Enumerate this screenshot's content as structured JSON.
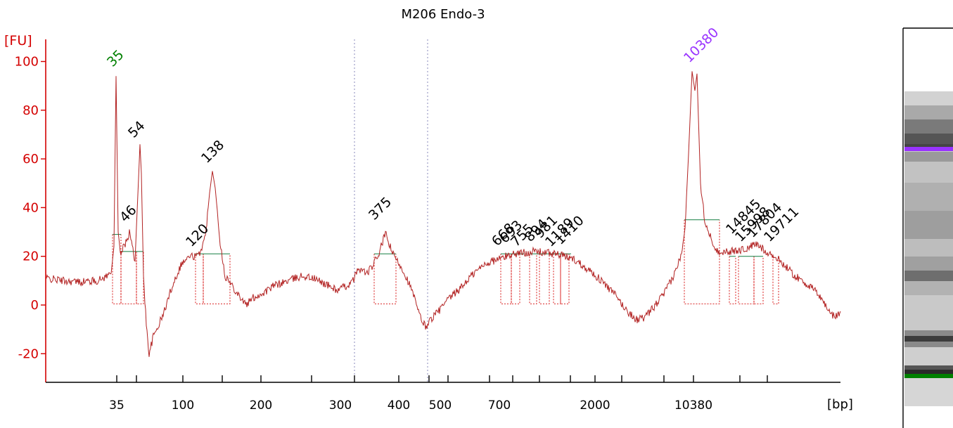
{
  "chart_data": {
    "type": "line",
    "title": "M206 Endo-3",
    "ylabel": "[FU]",
    "xlabel": "[bp]",
    "ylim": [
      -32,
      112
    ],
    "y_ticks": [
      -20,
      0,
      20,
      40,
      60,
      80,
      100
    ],
    "x_ticks": [
      "35",
      "100",
      "200",
      "300",
      "400",
      "500",
      "700",
      "2000",
      "10380"
    ],
    "marker_colors": {
      "lower": "#008000",
      "upper": "#9933ff"
    },
    "trace_color": "#b22222",
    "grid": false,
    "peaks": [
      {
        "label": "35",
        "color": "#008000",
        "fu": 94
      },
      {
        "label": "46",
        "color": "#000000",
        "fu": 30
      },
      {
        "label": "54",
        "color": "#000000",
        "fu": 66
      },
      {
        "label": "120",
        "color": "#000000",
        "fu": 22
      },
      {
        "label": "138",
        "color": "#000000",
        "fu": 55
      },
      {
        "label": "375",
        "color": "#000000",
        "fu": 29
      },
      {
        "label": "668",
        "color": "#000000",
        "fu": 22
      },
      {
        "label": "693",
        "color": "#000000",
        "fu": 23
      },
      {
        "label": "755",
        "color": "#000000",
        "fu": 22
      },
      {
        "label": "894",
        "color": "#000000",
        "fu": 23
      },
      {
        "label": "981",
        "color": "#000000",
        "fu": 23
      },
      {
        "label": "1189",
        "color": "#000000",
        "fu": 22
      },
      {
        "label": "1410",
        "color": "#000000",
        "fu": 22
      },
      {
        "label": "10380",
        "color": "#9933ff",
        "fu": 96
      },
      {
        "label": "14845",
        "color": "#000000",
        "fu": 25
      },
      {
        "label": "15998",
        "color": "#000000",
        "fu": 25
      },
      {
        "label": "17804",
        "color": "#000000",
        "fu": 26
      },
      {
        "label": "19711",
        "color": "#000000",
        "fu": 24
      }
    ]
  }
}
